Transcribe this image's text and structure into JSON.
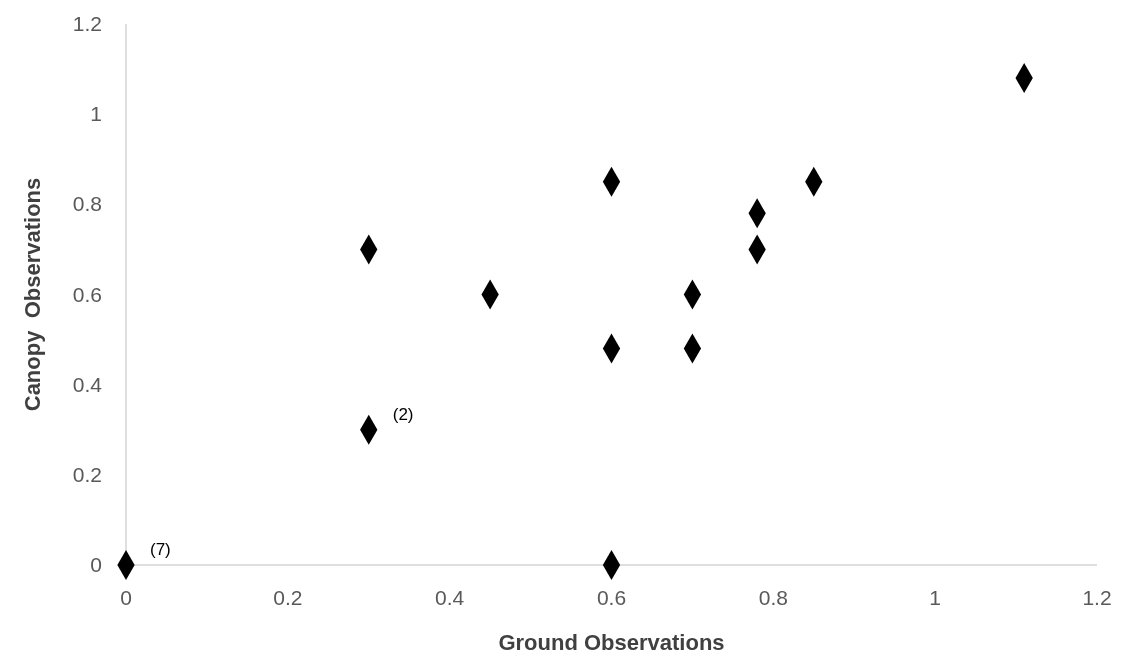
{
  "chart_data": {
    "type": "scatter",
    "xlabel": "Ground Observations",
    "ylabel": "Canopy  Observations",
    "x": [
      0,
      0.3,
      0.3,
      0.45,
      0.6,
      0.6,
      0.6,
      0.7,
      0.7,
      0.78,
      0.78,
      0.85,
      1.11
    ],
    "values": [
      0,
      0.7,
      0.3,
      0.6,
      0.85,
      0.48,
      0,
      0.6,
      0.48,
      0.78,
      0.7,
      0.85,
      1.08
    ],
    "color": "#000000",
    "marker": "diamond",
    "xlim": [
      0,
      1.2
    ],
    "xticks": [
      0,
      0.2,
      0.4,
      0.6,
      0.8,
      1,
      1.2
    ],
    "ylim": [
      0,
      1.2
    ],
    "yticks": [
      0,
      0.2,
      0.4,
      0.6,
      0.8,
      1,
      1.2
    ],
    "annotations": [
      {
        "text": "(2)",
        "x": 0.3,
        "y": 0.3
      },
      {
        "text": "(7)",
        "x": 0,
        "y": 0
      }
    ]
  }
}
